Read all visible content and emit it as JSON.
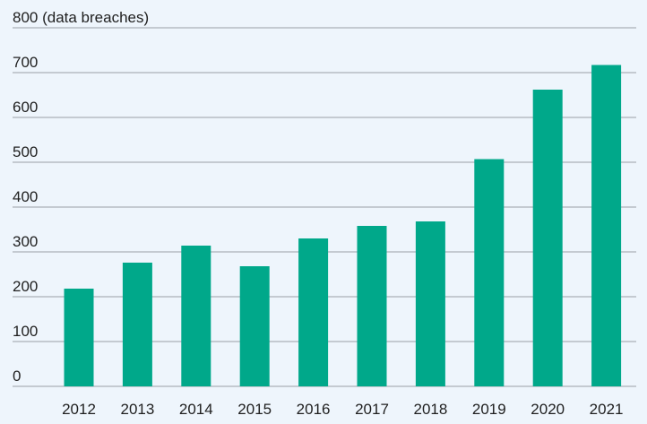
{
  "chart_data": {
    "type": "bar",
    "title": "",
    "ylabel": "(data breaches)",
    "xlabel": "",
    "categories": [
      "2012",
      "2013",
      "2014",
      "2015",
      "2016",
      "2017",
      "2018",
      "2019",
      "2020",
      "2021"
    ],
    "values": [
      218,
      276,
      314,
      268,
      330,
      358,
      368,
      507,
      662,
      717
    ],
    "ylim": [
      0,
      800
    ],
    "yticks": [
      0,
      100,
      200,
      300,
      400,
      500,
      600,
      700,
      800
    ],
    "grid": true,
    "legend": "none",
    "bar_color": "#00a88a",
    "background_color": "#eef5fc"
  }
}
